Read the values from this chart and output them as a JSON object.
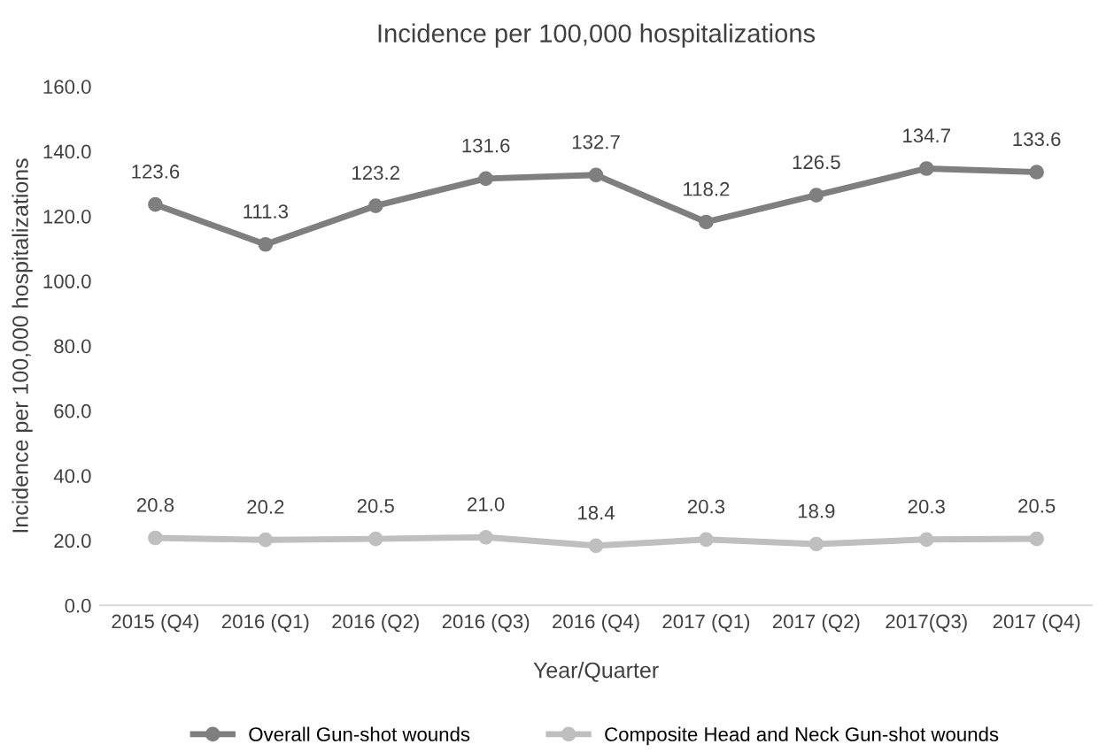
{
  "chart_data": {
    "type": "line",
    "title": "Incidence per 100,000 hospitalizations",
    "xlabel": "Year/Quarter",
    "ylabel": "Incidence per 100,000 hospitalizations",
    "categories": [
      "2015 (Q4)",
      "2016 (Q1)",
      "2016 (Q2)",
      "2016 (Q3)",
      "2016 (Q4)",
      "2017 (Q1)",
      "2017 (Q2)",
      "2017(Q3)",
      "2017 (Q4)"
    ],
    "series": [
      {
        "name": "Overall Gun-shot wounds",
        "color": "#7f7f7f",
        "values": [
          123.6,
          111.3,
          123.2,
          131.6,
          132.7,
          118.2,
          126.5,
          134.7,
          133.6
        ],
        "value_labels": [
          "123.6",
          "111.3",
          "123.2",
          "131.6",
          "132.7",
          "118.2",
          "126.5",
          "134.7",
          "133.6"
        ]
      },
      {
        "name": "Composite Head and Neck Gun-shot wounds",
        "color": "#bfbfbf",
        "values": [
          20.8,
          20.2,
          20.5,
          21.0,
          18.4,
          20.3,
          18.9,
          20.3,
          20.5
        ],
        "value_labels": [
          "20.8",
          "20.2",
          "20.5",
          "21.0",
          "18.4",
          "20.3",
          "18.9",
          "20.3",
          "20.5"
        ]
      }
    ],
    "ylim": [
      0,
      160
    ],
    "yticks": [
      {
        "value": 0,
        "label": "0.0"
      },
      {
        "value": 20,
        "label": "20.0"
      },
      {
        "value": 40,
        "label": "40.0"
      },
      {
        "value": 60,
        "label": "60.0"
      },
      {
        "value": 80,
        "label": "80.0"
      },
      {
        "value": 100,
        "label": "100.0"
      },
      {
        "value": 120,
        "label": "120.0"
      },
      {
        "value": 140,
        "label": "140.0"
      },
      {
        "value": 160,
        "label": "160.0"
      }
    ],
    "legend": "bottom",
    "marker": "circle",
    "line_style": "solid",
    "grid": false
  }
}
